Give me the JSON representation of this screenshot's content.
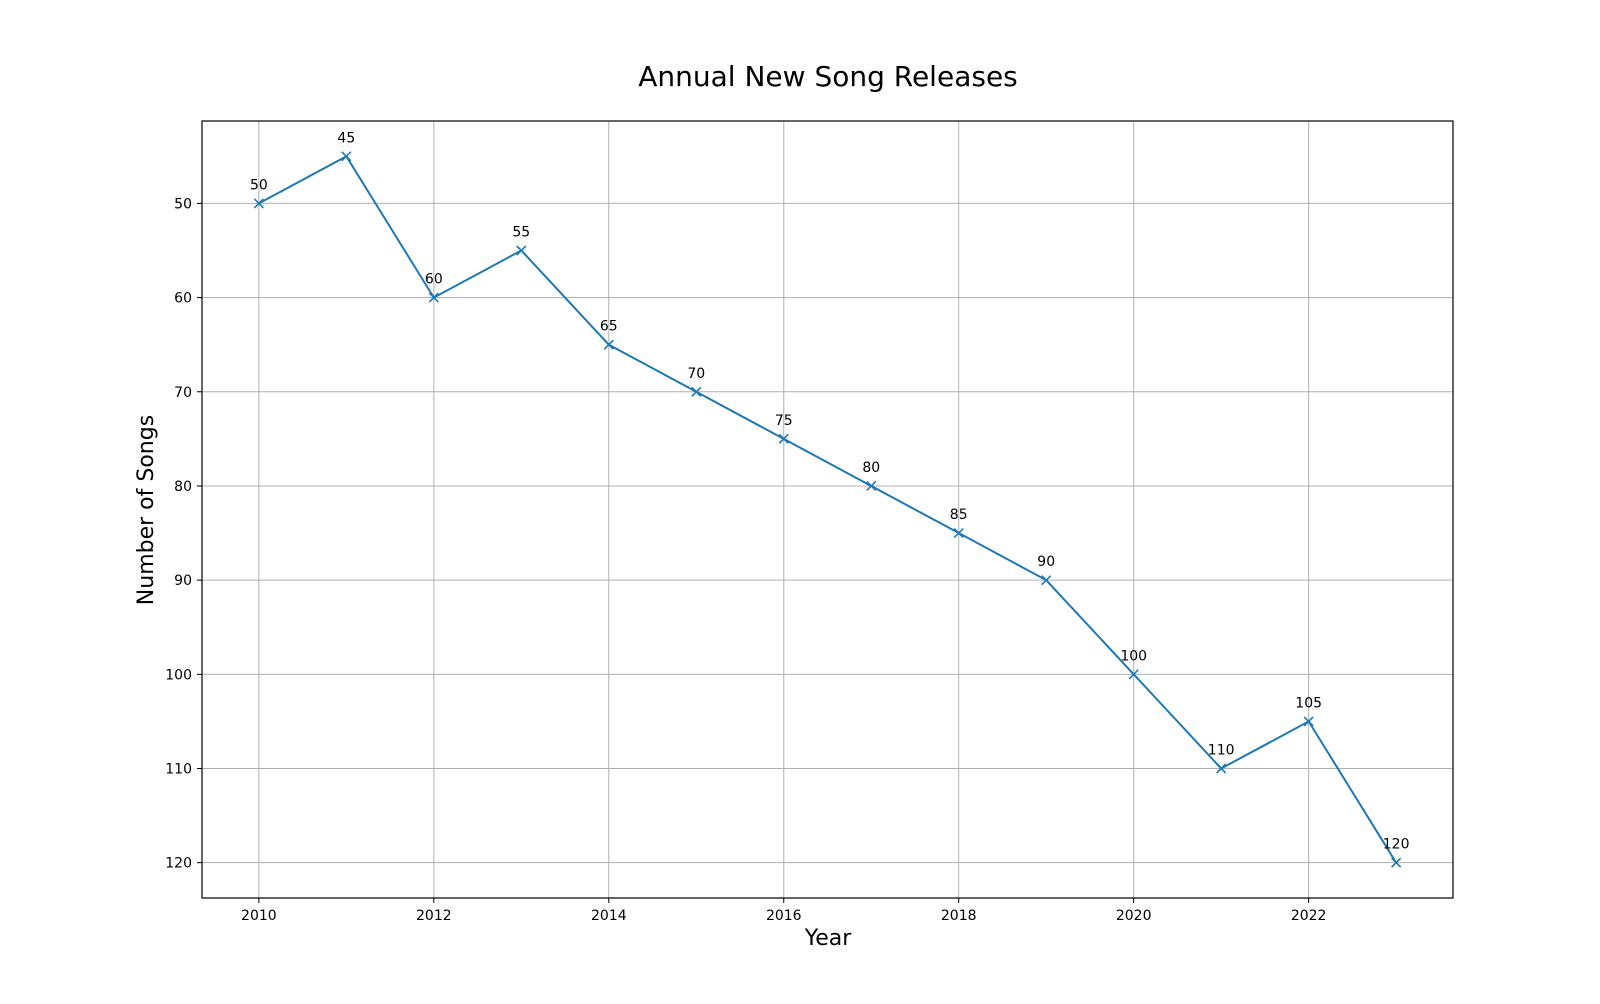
{
  "chart_data": {
    "type": "line",
    "title": "Annual New Song Releases",
    "xlabel": "Year",
    "ylabel": "Number of Songs",
    "x": [
      2010,
      2011,
      2012,
      2013,
      2014,
      2015,
      2016,
      2017,
      2018,
      2019,
      2020,
      2021,
      2022,
      2023
    ],
    "series": [
      {
        "values": [
          50,
          45,
          60,
          55,
          65,
          70,
          75,
          80,
          85,
          90,
          100,
          110,
          105,
          120
        ],
        "color": "#1f77b4",
        "marker": "x"
      }
    ],
    "data_labels": [
      "50",
      "45",
      "60",
      "55",
      "65",
      "70",
      "75",
      "80",
      "85",
      "90",
      "100",
      "110",
      "105",
      "120"
    ],
    "xticks": [
      2010,
      2012,
      2014,
      2016,
      2018,
      2020,
      2022
    ],
    "yticks": [
      50,
      60,
      70,
      80,
      90,
      100,
      110,
      120
    ],
    "xlim": [
      2009.35,
      2023.65
    ],
    "ylim": [
      41.25,
      123.75
    ],
    "y_inverted": true,
    "grid": true
  }
}
